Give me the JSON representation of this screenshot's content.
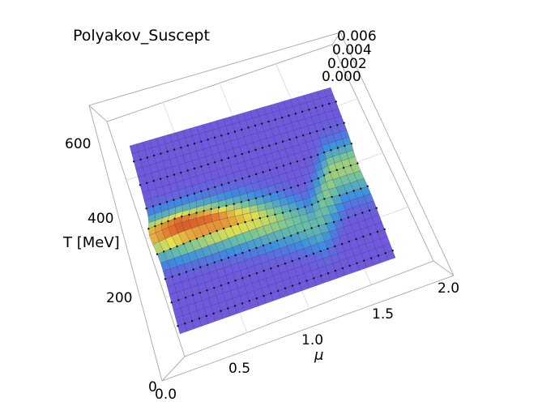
{
  "chart_data": {
    "type": "surface3d",
    "title": "Polyakov_Suscept",
    "xlabel": "μ",
    "ylabel": "T [MeV]",
    "zlabel": "",
    "x_ticks": [
      "0.0",
      "0.5",
      "1.0",
      "1.5",
      "2.0"
    ],
    "y_ticks": [
      "0",
      "200",
      "400",
      "600"
    ],
    "z_ticks": [
      "0.000",
      "0.002",
      "0.004",
      "0.006"
    ],
    "xlim": [
      0,
      2.0
    ],
    "ylim": [
      0,
      700
    ],
    "zlim": [
      0,
      0.006
    ],
    "colormap": [
      "#2b0a7a",
      "#5b2bd6",
      "#9a2fd8",
      "#3b8ee0",
      "#6cc2a0",
      "#e5e24a",
      "#e3702c",
      "#b42a18"
    ],
    "surface_approx": {
      "description": "susceptibility peak along crossover line T_c(mu)",
      "ridge": [
        {
          "mu": 0.0,
          "T": 350,
          "peak": 0.003
        },
        {
          "mu": 0.3,
          "T": 345,
          "peak": 0.0045
        },
        {
          "mu": 0.6,
          "T": 330,
          "peak": 0.004
        },
        {
          "mu": 0.9,
          "T": 305,
          "peak": 0.0025
        },
        {
          "mu": 1.2,
          "T": 265,
          "peak": 0.0012
        },
        {
          "mu": 1.45,
          "T": 210,
          "peak": 0.0008
        },
        {
          "mu": 1.75,
          "T": 380,
          "peak": 0.0015
        }
      ]
    }
  }
}
